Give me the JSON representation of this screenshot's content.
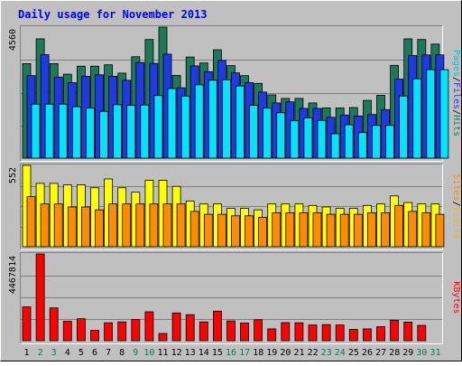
{
  "chart_data": {
    "type": "bar",
    "title": "Daily usage for November 2013",
    "days": [
      "1",
      "2",
      "3",
      "4",
      "5",
      "6",
      "7",
      "8",
      "9",
      "10",
      "11",
      "12",
      "13",
      "14",
      "15",
      "16",
      "17",
      "18",
      "19",
      "20",
      "21",
      "22",
      "23",
      "24",
      "25",
      "26",
      "27",
      "28",
      "29",
      "30",
      "31"
    ],
    "weekend_days": [
      "2",
      "3",
      "9",
      "10",
      "16",
      "17",
      "23",
      "24",
      "30",
      "31"
    ],
    "panels": [
      {
        "id": "hits",
        "max_label": "4560",
        "ymax": 4560,
        "series": [
          {
            "name": "Hits",
            "color": "#1c7a58",
            "values": [
              3290,
              4150,
              3290,
              2920,
              3200,
              3200,
              3250,
              2960,
              3530,
              4130,
              4560,
              2880,
              3520,
              3310,
              3770,
              3220,
              2870,
              2600,
              2200,
              2080,
              2080,
              1920,
              1750,
              1750,
              1760,
              2010,
              2190,
              3230,
              4150,
              4130,
              3970
            ]
          },
          {
            "name": "Files",
            "color": "#1e3ae4",
            "values": [
              2870,
              3600,
              2820,
              2630,
              2850,
              2900,
              2850,
              2710,
              3330,
              3300,
              3620,
              2450,
              3210,
              3010,
              3400,
              2970,
              2630,
              2300,
              1920,
              1960,
              1730,
              1730,
              1420,
              1500,
              1470,
              1520,
              1690,
              2750,
              3570,
              3590,
              3590
            ]
          },
          {
            "name": "Pages",
            "color": "#00e4ff",
            "values": [
              1880,
              1880,
              1880,
              1790,
              1740,
              1630,
              1860,
              1840,
              1850,
              2180,
              2420,
              2160,
              2550,
              2710,
              2730,
              2510,
              1840,
              1740,
              1580,
              1300,
              1400,
              1310,
              850,
              1160,
              890,
              1140,
              1140,
              2160,
              2760,
              3080,
              3080
            ]
          }
        ]
      },
      {
        "id": "visits",
        "max_label": "552",
        "ymax": 552,
        "series": [
          {
            "name": "Visits",
            "color": "#ffff00",
            "values": [
              552,
              430,
              430,
              420,
              420,
              400,
              460,
              400,
              370,
              450,
              450,
              410,
              310,
              290,
              290,
              260,
              260,
              250,
              290,
              290,
              290,
              280,
              270,
              260,
              260,
              280,
              290,
              345,
              300,
              290,
              290
            ]
          },
          {
            "name": "Sites",
            "color": "#ff8c00",
            "values": [
              340,
              290,
              290,
              270,
              270,
              250,
              290,
              290,
              290,
              290,
              290,
              290,
              240,
              220,
              220,
              210,
              210,
              200,
              230,
              230,
              230,
              230,
              220,
              220,
              220,
              230,
              230,
              280,
              240,
              230,
              220
            ]
          }
        ]
      },
      {
        "id": "kbytes",
        "max_label": "4467814",
        "ymax": 4467814,
        "series": [
          {
            "name": "KBytes",
            "color": "#ff0000",
            "values": [
              1740000,
              4467814,
              1690000,
              1000000,
              1130000,
              530000,
              920000,
              970000,
              1090000,
              1490000,
              370000,
              1430000,
              1340000,
              970000,
              1520000,
              1020000,
              910000,
              1080000,
              610000,
              930000,
              920000,
              810000,
              830000,
              810000,
              580000,
              610000,
              720000,
              1050000,
              960000,
              790000,
              0
            ]
          }
        ]
      }
    ],
    "right_labels": [
      {
        "panel": "hits",
        "parts": [
          {
            "text": "Pages",
            "color": "#00c0e0"
          },
          {
            "text": "/",
            "color": "#000000"
          },
          {
            "text": "Files",
            "color": "#1e3ae4"
          },
          {
            "text": "/",
            "color": "#000000"
          },
          {
            "text": "Hits",
            "color": "#1c7a58"
          }
        ]
      },
      {
        "panel": "visits",
        "parts": [
          {
            "text": "Sites",
            "color": "#ff8c00"
          },
          {
            "text": "/",
            "color": "#000000"
          },
          {
            "text": "Visits",
            "color": "#e0c000"
          }
        ]
      },
      {
        "panel": "kbytes",
        "parts": [
          {
            "text": "KBytes",
            "color": "#ff0000"
          }
        ]
      }
    ],
    "colors": {
      "background": "#c0c0c0",
      "title": "#0000ff",
      "weekday_label": "#000000",
      "weekend_label": "#00804f"
    }
  }
}
